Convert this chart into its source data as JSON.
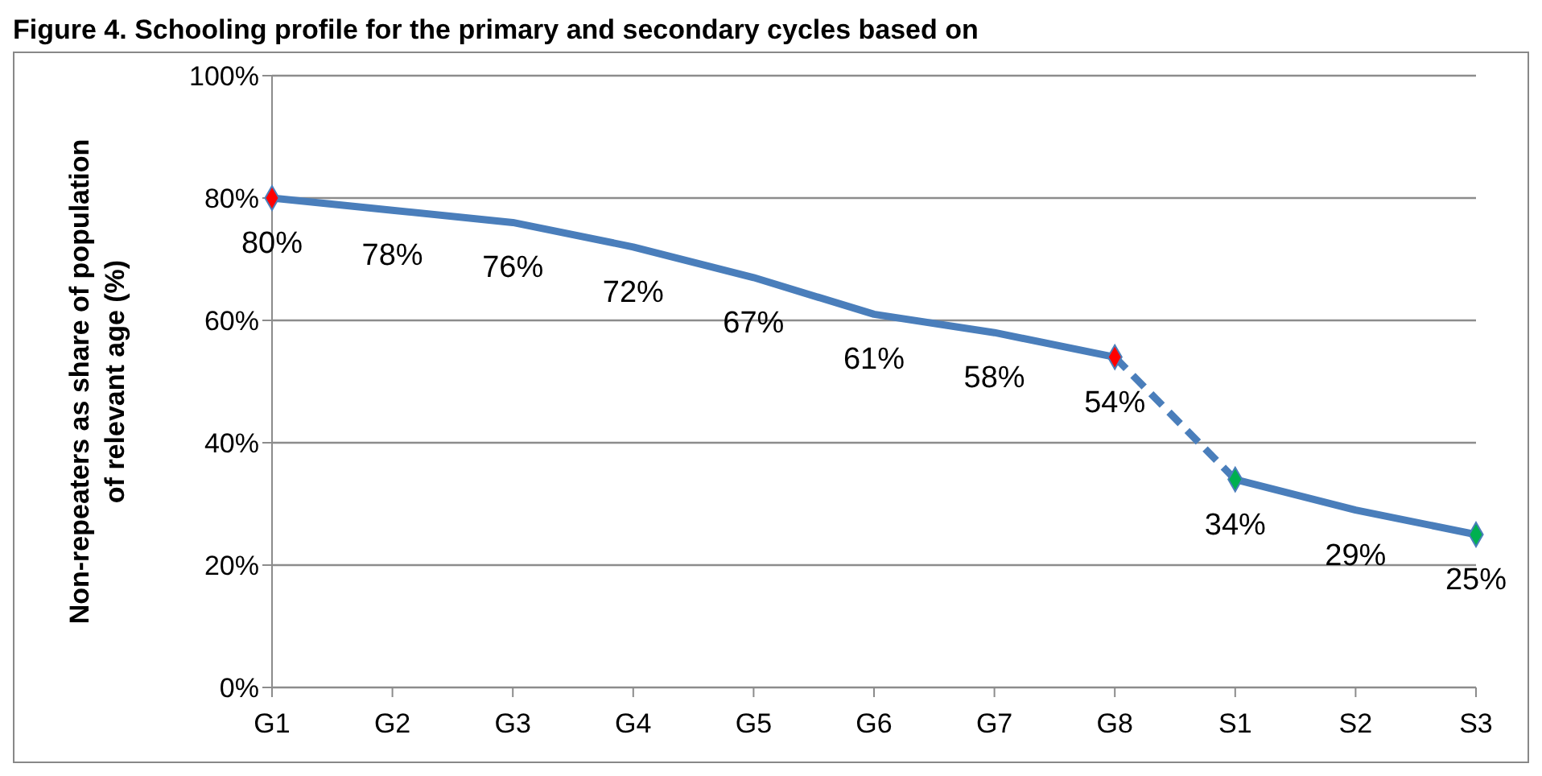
{
  "chart_data": {
    "type": "line",
    "title": "Figure 4. Schooling profile for the primary and secondary cycles based on",
    "ylabel": "Non-repeaters as share of population of relevant age (%)",
    "categories": [
      "G1",
      "G2",
      "G3",
      "G4",
      "G5",
      "G6",
      "G7",
      "G8",
      "S1",
      "S2",
      "S3"
    ],
    "series": [
      {
        "color": "#4a7ebb",
        "line_style": "solid",
        "marker": "none",
        "values": [
          80,
          78,
          76,
          72,
          67,
          61,
          58,
          54,
          null,
          null,
          null
        ],
        "value_labels": [
          "80%",
          "78%",
          "76%",
          "72%",
          "67%",
          "61%",
          "58%",
          "54%",
          null,
          null,
          null
        ]
      },
      {
        "color": "#4a7ebb",
        "line_style": "dashed",
        "marker": "none",
        "values": [
          null,
          null,
          null,
          null,
          null,
          null,
          null,
          54,
          34,
          null,
          null
        ]
      },
      {
        "color": "#4a7ebb",
        "line_style": "solid",
        "marker": "none",
        "values": [
          null,
          null,
          null,
          null,
          null,
          null,
          null,
          null,
          34,
          29,
          25
        ],
        "value_labels": [
          null,
          null,
          null,
          null,
          null,
          null,
          null,
          null,
          "34%",
          "29%",
          "25%"
        ]
      },
      {
        "type": "scatter",
        "color": "#ff0000",
        "marker": "diamond",
        "x": [
          "G1",
          "G8"
        ],
        "values": [
          80,
          54
        ]
      },
      {
        "type": "scatter",
        "color": "#00b050",
        "marker": "diamond",
        "x": [
          "S1",
          "S3"
        ],
        "values": [
          34,
          25
        ]
      }
    ],
    "ylim": [
      0,
      100
    ],
    "yticks": [
      {
        "value": 0,
        "label": "0%"
      },
      {
        "value": 20,
        "label": "20%"
      },
      {
        "value": 40,
        "label": "40%"
      },
      {
        "value": 60,
        "label": "60%"
      },
      {
        "value": 80,
        "label": "80%"
      },
      {
        "value": 100,
        "label": "100%"
      }
    ],
    "grid": "y",
    "legend": false
  }
}
